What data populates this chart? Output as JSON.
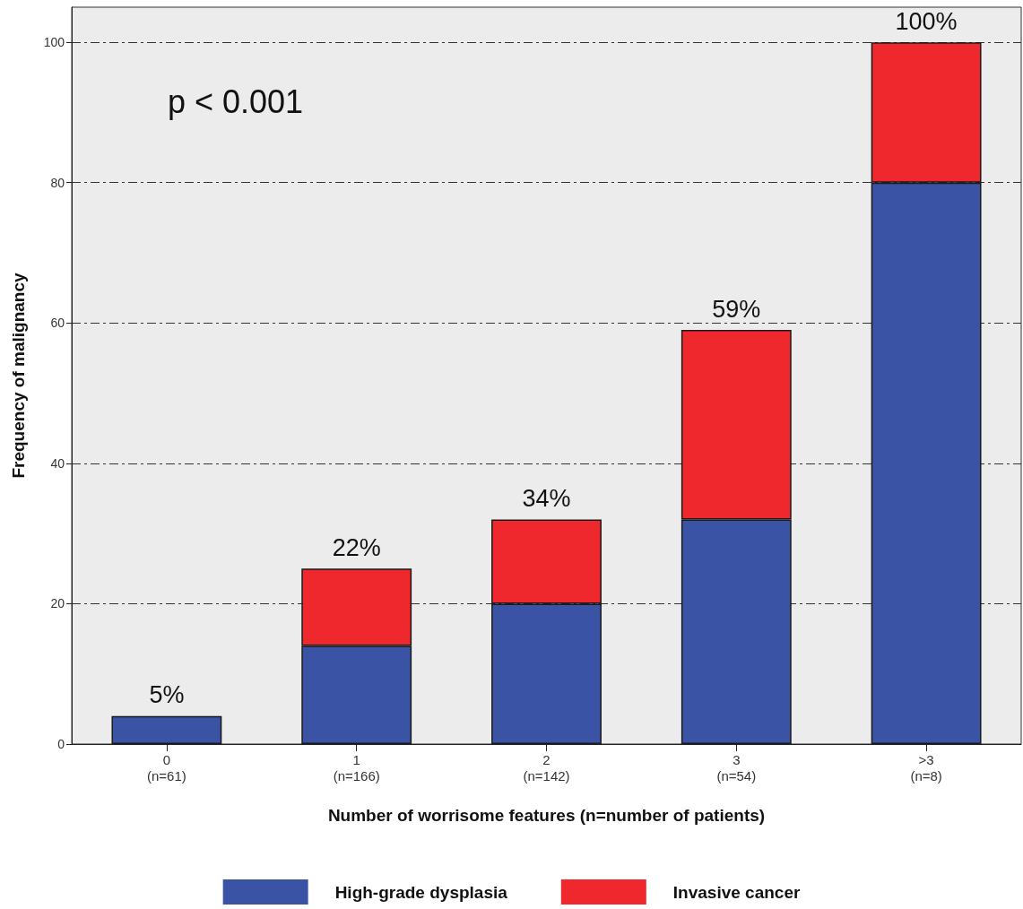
{
  "chart_data": {
    "type": "bar",
    "stacked": true,
    "xlabel": "Number of worrisome features (n=number of patients)",
    "ylabel": "Frequency of malignancy",
    "categories": [
      "0\n(n=61)",
      "1\n(n=166)",
      "2\n(n=142)",
      "3\n(n=54)",
      ">3\n(n=8)"
    ],
    "series": [
      {
        "name": "High-grade dysplasia",
        "color": "#3a53a4",
        "values": [
          4,
          14,
          20,
          32,
          80
        ]
      },
      {
        "name": "Invasive cancer",
        "color": "#ee282c",
        "values": [
          null,
          11,
          12,
          27,
          20
        ]
      }
    ],
    "annotations": [
      "p < 0.001",
      {
        "text": "5%",
        "x": "0\n(n=61)",
        "y": 4
      },
      {
        "text": "22%",
        "x": "1\n(n=166)",
        "y": 25
      },
      {
        "text": "34%",
        "x": "2\n(n=142)",
        "y": 32
      },
      {
        "text": "59%",
        "x": "3\n(n=54)",
        "y": 59
      },
      {
        "text": "100%",
        "x": ">3\n(n=8)",
        "y": 100
      }
    ],
    "ylim": [
      0,
      105
    ],
    "yticks": [
      0,
      20,
      40,
      60,
      80,
      100
    ],
    "grid": "y",
    "legend": "bottom"
  }
}
